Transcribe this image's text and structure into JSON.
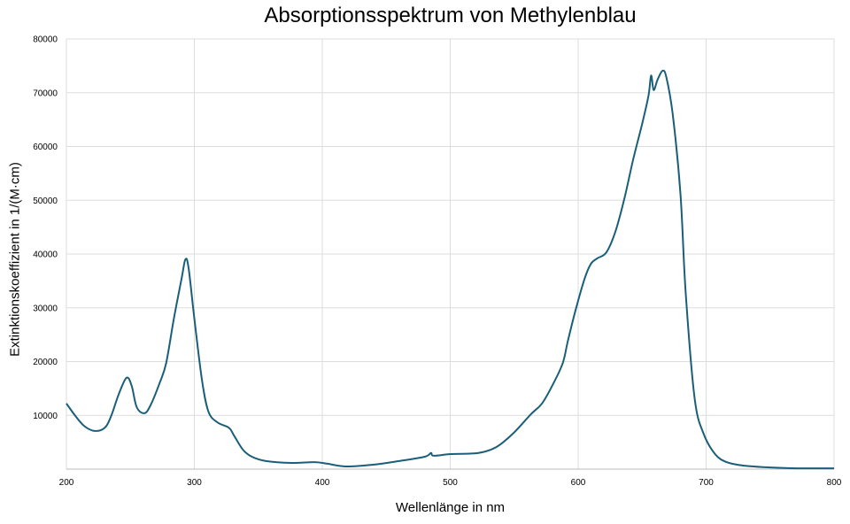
{
  "chart_data": {
    "type": "line",
    "title": "Absorptionsspektrum von Methylenblau",
    "xlabel": "Wellenlänge in nm",
    "ylabel": "Extinktionskoeffizient in 1/(M·cm)",
    "xlim": [
      200,
      800
    ],
    "ylim": [
      0,
      80000
    ],
    "x_ticks": [
      "200",
      "300",
      "400",
      "500",
      "600",
      "700",
      "800"
    ],
    "y_ticks": [
      "10000",
      "20000",
      "30000",
      "40000",
      "50000",
      "60000",
      "70000",
      "80000"
    ],
    "grid": true,
    "legend": "none",
    "line_color": "#1a5f7a",
    "series": [
      {
        "x": [
          200,
          207,
          214,
          222,
          230,
          235,
          241,
          247,
          251,
          255,
          261,
          266,
          273,
          278,
          284,
          290,
          293,
          295.5,
          300,
          306,
          311,
          318,
          327,
          331,
          338,
          345,
          356,
          376,
          394,
          404,
          418,
          439,
          460,
          480,
          485,
          487,
          501,
          522,
          536,
          549,
          563,
          572,
          581,
          588,
          592,
          598,
          605,
          610,
          615,
          622,
          629,
          636,
          643,
          650,
          655,
          657,
          659,
          662,
          666,
          669,
          674,
          680,
          684,
          691,
          698,
          707,
          716,
          729,
          750,
          771,
          800
        ],
        "y": [
          12200,
          9900,
          8000,
          7100,
          7700,
          9900,
          14000,
          17000,
          15500,
          11500,
          10400,
          12000,
          16100,
          19750,
          28000,
          35400,
          39000,
          37400,
          28000,
          16500,
          10700,
          8700,
          7700,
          6250,
          3600,
          2300,
          1500,
          1150,
          1300,
          1000,
          500,
          800,
          1500,
          2300,
          3000,
          2500,
          2800,
          3000,
          4100,
          6600,
          10200,
          12300,
          16100,
          19750,
          23900,
          29600,
          35400,
          38200,
          39200,
          40300,
          44100,
          50200,
          57600,
          64200,
          69500,
          73200,
          70500,
          72400,
          74100,
          72800,
          65800,
          51000,
          32900,
          13200,
          6600,
          2800,
          1300,
          650,
          300,
          150,
          150
        ]
      }
    ]
  }
}
